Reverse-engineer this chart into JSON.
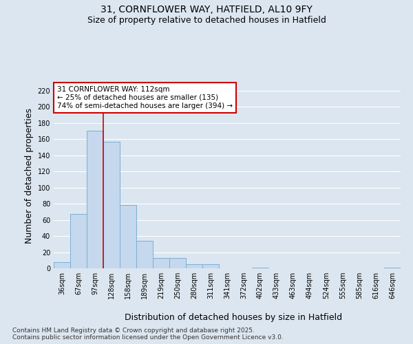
{
  "title_line1": "31, CORNFLOWER WAY, HATFIELD, AL10 9FY",
  "title_line2": "Size of property relative to detached houses in Hatfield",
  "xlabel": "Distribution of detached houses by size in Hatfield",
  "ylabel": "Number of detached properties",
  "categories": [
    "36sqm",
    "67sqm",
    "97sqm",
    "128sqm",
    "158sqm",
    "189sqm",
    "219sqm",
    "250sqm",
    "280sqm",
    "311sqm",
    "341sqm",
    "372sqm",
    "402sqm",
    "433sqm",
    "463sqm",
    "494sqm",
    "524sqm",
    "555sqm",
    "585sqm",
    "616sqm",
    "646sqm"
  ],
  "bar_values": [
    8,
    67,
    170,
    157,
    78,
    34,
    13,
    13,
    5,
    5,
    0,
    0,
    1,
    0,
    0,
    0,
    0,
    0,
    0,
    0,
    1
  ],
  "bar_color": "#c5d8ee",
  "bar_edge_color": "#7aafd4",
  "line_bar_index": 3,
  "annotation_line1": "31 CORNFLOWER WAY: 112sqm",
  "annotation_line2": "← 25% of detached houses are smaller (135)",
  "annotation_line3": "74% of semi-detached houses are larger (394) →",
  "ylim": [
    0,
    230
  ],
  "yticks": [
    0,
    20,
    40,
    60,
    80,
    100,
    120,
    140,
    160,
    180,
    200,
    220
  ],
  "footnote": "Contains HM Land Registry data © Crown copyright and database right 2025.\nContains public sector information licensed under the Open Government Licence v3.0.",
  "bg_color": "#dce6f0",
  "plot_bg_color": "#dce6f0",
  "grid_color": "#ffffff",
  "title_fontsize": 10,
  "subtitle_fontsize": 9,
  "axis_label_fontsize": 9,
  "tick_fontsize": 7,
  "annotation_fontsize": 7.5,
  "footnote_fontsize": 6.5
}
